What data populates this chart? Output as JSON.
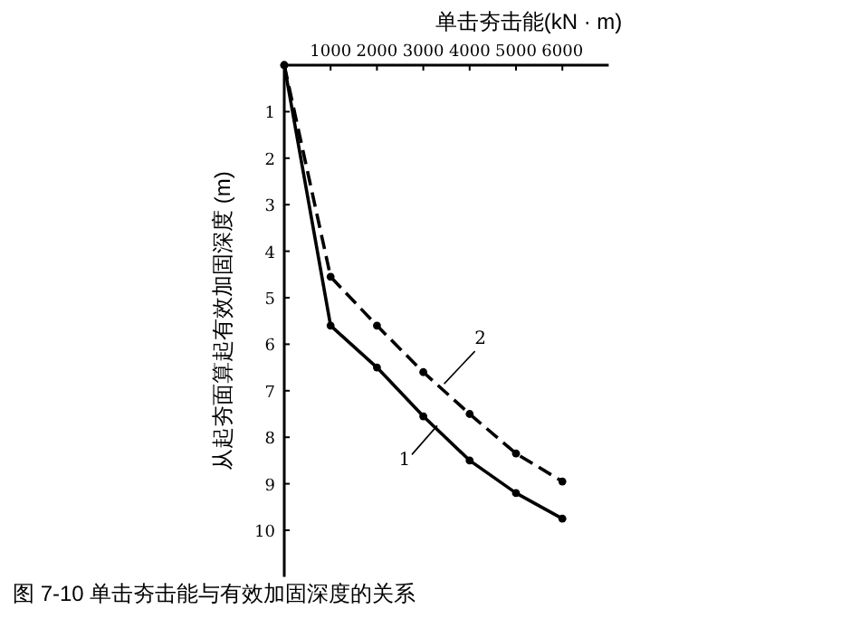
{
  "chart_data": {
    "type": "line",
    "xlabel": "单击夯击能(kN · m)",
    "ylabel": "从起夯面算起有效加固深度 (m)",
    "x": [
      0,
      1000,
      2000,
      3000,
      4000,
      5000,
      6000
    ],
    "series": [
      {
        "color": "#000000",
        "line_style": "solid",
        "values": [
          0,
          5.6,
          6.5,
          7.55,
          8.5,
          9.2,
          9.75
        ]
      },
      {
        "color": "#000000",
        "line_style": "dashed",
        "values": [
          0,
          4.55,
          5.6,
          6.6,
          7.5,
          8.35,
          8.95
        ]
      }
    ],
    "xlim": [
      0,
      7000
    ],
    "ylim": [
      11,
      0
    ],
    "xticks": [
      1000,
      2000,
      3000,
      4000,
      5000,
      6000
    ],
    "yticks": [
      1,
      2,
      3,
      4,
      5,
      6,
      7,
      8,
      9,
      10
    ],
    "marker": "circle",
    "grid": false,
    "annotations": [
      {
        "text": "1",
        "x": 3300,
        "y": 7.75
      },
      {
        "text": "2",
        "x": 3450,
        "y": 6.85
      },
      "图 7-10  单击夯击能与有效加固深度的关系"
    ]
  }
}
